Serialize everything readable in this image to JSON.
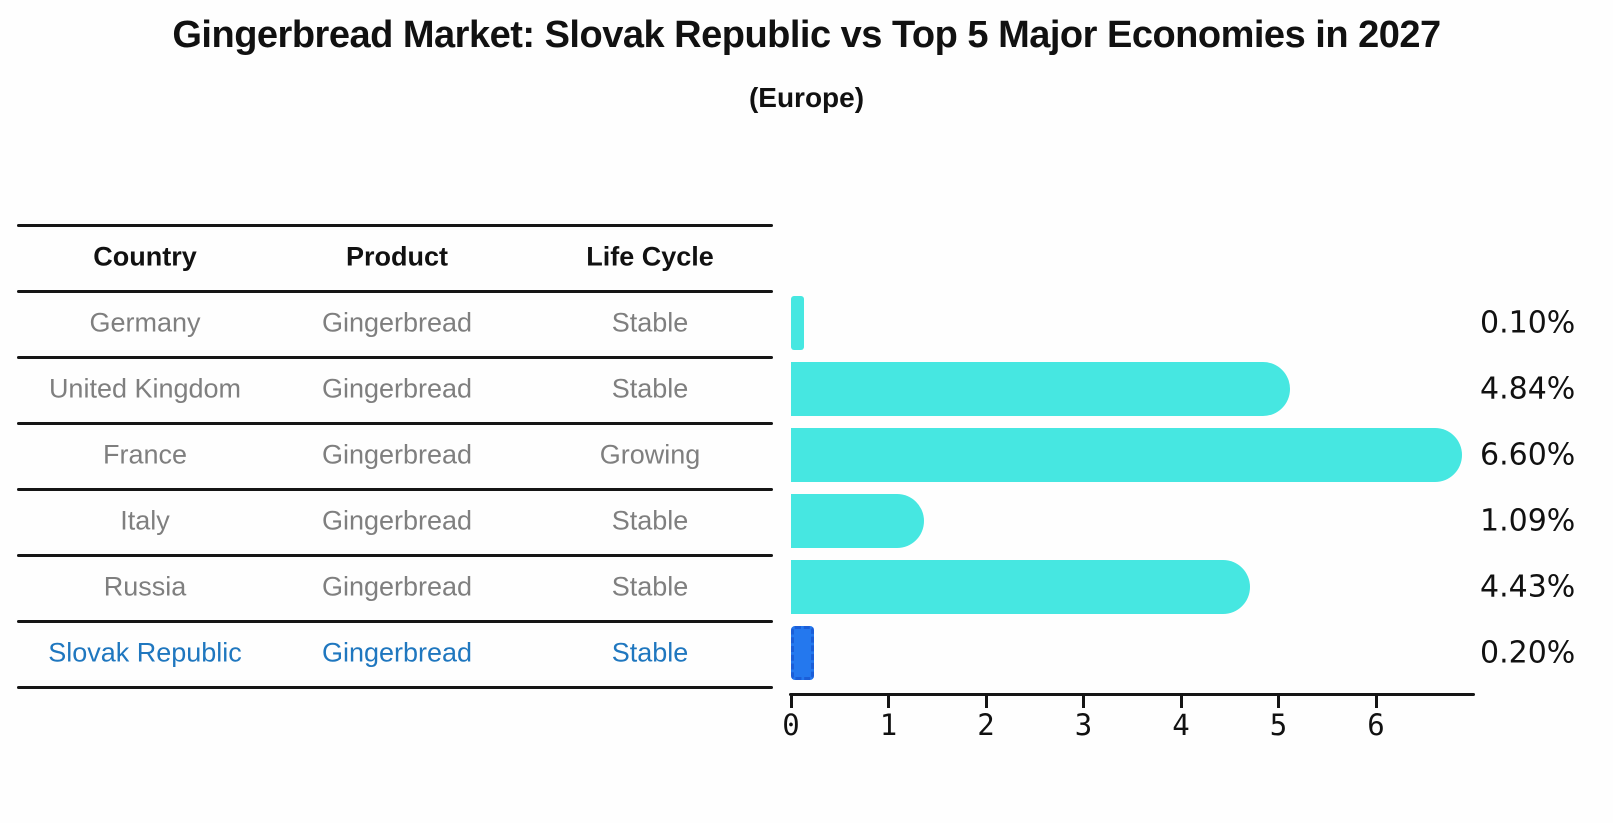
{
  "title": "Gingerbread Market: Slovak Republic vs Top 5 Major Economies in 2027",
  "subtitle": "(Europe)",
  "table": {
    "headers": [
      "Country",
      "Product",
      "Life Cycle"
    ]
  },
  "chart_data": {
    "type": "bar",
    "orientation": "horizontal",
    "title": "Gingerbread Market: Slovak Republic vs Top 5 Major Economies in 2027 (Europe)",
    "categories": [
      "Germany",
      "United Kingdom",
      "France",
      "Italy",
      "Russia",
      "Slovak Republic"
    ],
    "values": [
      0.1,
      4.84,
      6.6,
      1.09,
      4.43,
      0.2
    ],
    "value_labels": [
      "0.10%",
      "4.84%",
      "6.60%",
      "1.09%",
      "4.43%",
      "0.20%"
    ],
    "rows": [
      {
        "country": "Germany",
        "product": "Gingerbread",
        "life_cycle": "Stable",
        "value": 0.1,
        "label": "0.10%",
        "highlight": false
      },
      {
        "country": "United Kingdom",
        "product": "Gingerbread",
        "life_cycle": "Stable",
        "value": 4.84,
        "label": "4.84%",
        "highlight": false
      },
      {
        "country": "France",
        "product": "Gingerbread",
        "life_cycle": "Growing",
        "value": 6.6,
        "label": "6.60%",
        "highlight": false
      },
      {
        "country": "Italy",
        "product": "Gingerbread",
        "life_cycle": "Stable",
        "value": 1.09,
        "label": "1.09%",
        "highlight": false
      },
      {
        "country": "Russia",
        "product": "Gingerbread",
        "life_cycle": "Stable",
        "value": 4.43,
        "label": "4.43%",
        "highlight": false
      },
      {
        "country": "Slovak Republic",
        "product": "Gingerbread",
        "life_cycle": "Stable",
        "value": 0.2,
        "label": "0.20%",
        "highlight": true
      }
    ],
    "x_ticks": [
      "0",
      "1",
      "2",
      "3",
      "4",
      "5",
      "6"
    ],
    "xlim": [
      0,
      7
    ],
    "xlabel": "",
    "ylabel": "",
    "grid": false,
    "legend": false,
    "highlight_index": 5,
    "colors": {
      "bar": "#46e7e1",
      "highlight_bar": "#2478ee",
      "highlight_bar_border": "#1b5ed8",
      "highlight_text": "#1f77bf",
      "row_text": "#7f7f7f",
      "axis": "#151515",
      "label_text": "#111111"
    }
  }
}
